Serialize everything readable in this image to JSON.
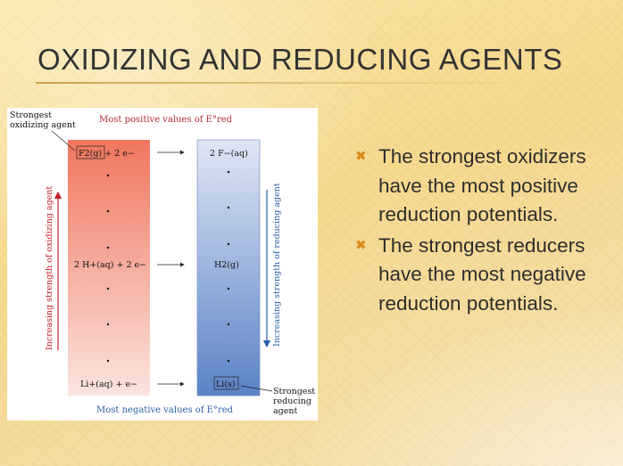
{
  "slide": {
    "title": "OXIDIZING AND REDUCING AGENTS",
    "bullets": [
      "The strongest oxidizers have the most positive reduction potentials.",
      "The strongest reducers have the most negative reduction potentials."
    ],
    "bullet_icon": "x-mark-icon",
    "colors": {
      "bullet": "#d88a1a",
      "text": "#2e2e2e"
    }
  },
  "figure": {
    "label_strongest_oxidizing": [
      "Strongest",
      "oxidizing agent"
    ],
    "header_top": "Most positive values of E°red",
    "header_bottom": "Most negative values of E°red",
    "label_strongest_reducing": [
      "Strongest",
      "reducing",
      "agent"
    ],
    "left_axis": "Increasing strength of oxidizing agent",
    "right_axis": "Increasing strength of reducing agent",
    "rows": [
      {
        "left": "F2(g) + 2 e−",
        "right": "2 F−(aq)"
      },
      {
        "left": "2 H+(aq) + 2 e−",
        "right": "H2(g)"
      },
      {
        "left": "Li+(aq) + e−",
        "right": "Li(s)"
      }
    ],
    "colors": {
      "red": "#f08a72",
      "blue": "#5f86c8",
      "axis_red": "#c8202a",
      "axis_blue": "#2b5fa8",
      "header": "#b8283a",
      "bottom_header": "#2b5fa8"
    }
  }
}
